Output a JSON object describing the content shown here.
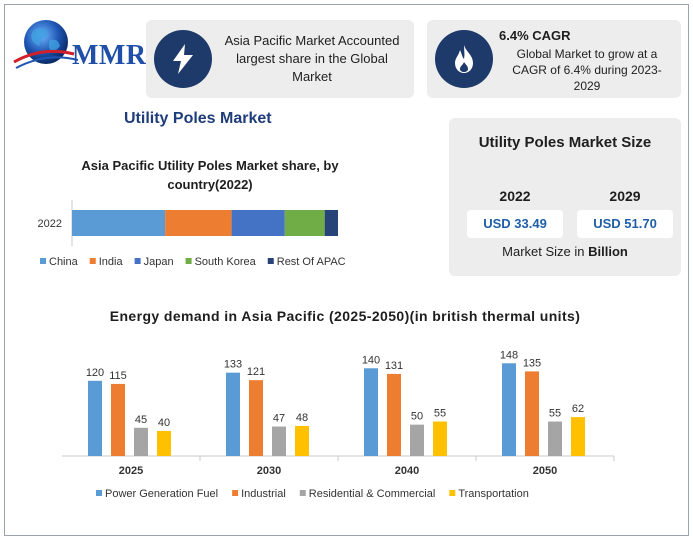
{
  "logo": {
    "text": "MMR"
  },
  "card1": {
    "icon": "lightning-icon",
    "text": "Asia Pacific Market Accounted largest share in the Global Market"
  },
  "card2": {
    "icon": "flame-icon",
    "title": "6.4% CAGR",
    "text": "Global Market to grow at a CAGR of 6.4% during 2023-2029"
  },
  "main_title": "Utility Poles Market",
  "size_card": {
    "title": "Utility Poles Market Size",
    "years": [
      "2022",
      "2029"
    ],
    "values": [
      "USD 33.49",
      "USD 51.70"
    ],
    "footer_prefix": "Market Size in ",
    "footer_unit": "Billion"
  },
  "chart_data": [
    {
      "type": "bar",
      "orientation": "horizontal-stacked",
      "title": "Asia Pacific Utility Poles Market share, by country(2022)",
      "categories": [
        "2022"
      ],
      "series": [
        {
          "name": "China",
          "values": [
            35
          ],
          "color": "#5b9bd5"
        },
        {
          "name": "India",
          "values": [
            25
          ],
          "color": "#ed7d31"
        },
        {
          "name": "Japan",
          "values": [
            20
          ],
          "color": "#4472c4"
        },
        {
          "name": "South Korea",
          "values": [
            15
          ],
          "color": "#70ad47"
        },
        {
          "name": "Rest Of APAC",
          "values": [
            5
          ],
          "color": "#264478"
        }
      ],
      "legend": "bottom"
    },
    {
      "type": "bar",
      "title": "Energy demand in Asia Pacific (2025-2050)(in british thermal units)",
      "categories": [
        "2025",
        "2030",
        "2040",
        "2050"
      ],
      "series": [
        {
          "name": "Power Generation Fuel",
          "values": [
            120,
            133,
            140,
            148
          ],
          "color": "#5b9bd5"
        },
        {
          "name": "Industrial",
          "values": [
            115,
            121,
            131,
            135
          ],
          "color": "#ed7d31"
        },
        {
          "name": "Residential & Commercial",
          "values": [
            45,
            47,
            50,
            55
          ],
          "color": "#a5a5a5"
        },
        {
          "name": "Transportation",
          "values": [
            40,
            48,
            55,
            62
          ],
          "color": "#ffc000"
        }
      ],
      "ylim": [
        0,
        150
      ],
      "legend": "bottom"
    }
  ]
}
